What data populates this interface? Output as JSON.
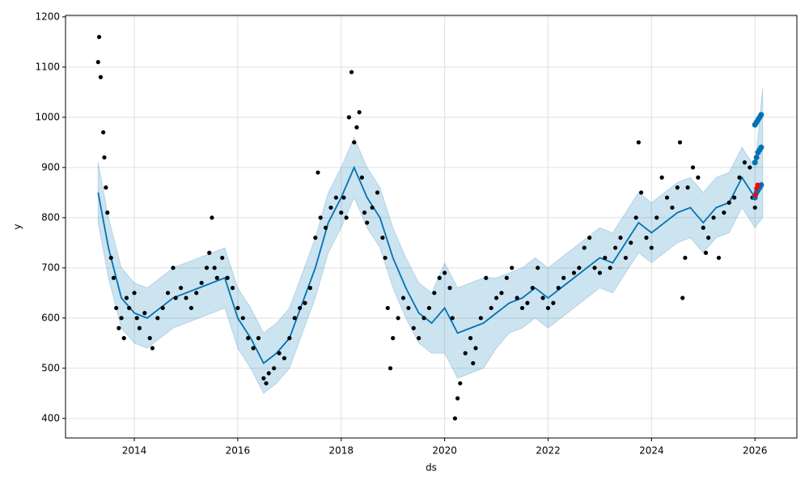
{
  "chart_data": {
    "type": "line",
    "xlabel": "ds",
    "ylabel": "y",
    "xlim": [
      2012.67,
      2026.81
    ],
    "ylim": [
      361,
      1203
    ],
    "xticks": [
      2014,
      2016,
      2018,
      2020,
      2022,
      2024,
      2026
    ],
    "yticks": [
      400,
      500,
      600,
      700,
      800,
      900,
      1000,
      1100,
      1200
    ],
    "grid": true,
    "series": [
      {
        "type": "band",
        "color": "#0072B2",
        "x": [
          2013.3,
          2013.5,
          2013.75,
          2014.0,
          2014.25,
          2014.5,
          2014.75,
          2015.0,
          2015.25,
          2015.5,
          2015.75,
          2016.0,
          2016.25,
          2016.5,
          2016.75,
          2017.0,
          2017.25,
          2017.5,
          2017.75,
          2018.0,
          2018.25,
          2018.5,
          2018.75,
          2019.0,
          2019.25,
          2019.5,
          2019.75,
          2020.0,
          2020.25,
          2020.5,
          2020.75,
          2021.0,
          2021.25,
          2021.5,
          2021.75,
          2022.0,
          2022.25,
          2022.5,
          2022.75,
          2023.0,
          2023.25,
          2023.5,
          2023.75,
          2024.0,
          2024.25,
          2024.5,
          2024.75,
          2025.0,
          2025.25,
          2025.5,
          2025.75,
          2026.0,
          2026.15
        ],
        "lower": [
          790,
          680,
          580,
          550,
          540,
          560,
          580,
          590,
          600,
          610,
          620,
          540,
          500,
          450,
          470,
          500,
          570,
          640,
          730,
          780,
          840,
          780,
          740,
          660,
          600,
          550,
          530,
          530,
          480,
          490,
          500,
          540,
          570,
          580,
          600,
          580,
          600,
          620,
          640,
          660,
          650,
          690,
          730,
          710,
          730,
          750,
          760,
          730,
          760,
          770,
          820,
          780,
          800
        ],
        "upper": [
          910,
          800,
          700,
          670,
          660,
          680,
          700,
          710,
          720,
          730,
          740,
          660,
          620,
          570,
          590,
          620,
          690,
          760,
          850,
          900,
          960,
          900,
          860,
          780,
          720,
          670,
          650,
          710,
          660,
          670,
          680,
          680,
          690,
          700,
          720,
          700,
          720,
          740,
          760,
          780,
          770,
          810,
          850,
          830,
          850,
          870,
          880,
          850,
          880,
          890,
          940,
          900,
          1060
        ]
      },
      {
        "type": "line",
        "color": "#0072B2",
        "x": [
          2013.3,
          2013.5,
          2013.75,
          2014.0,
          2014.25,
          2014.5,
          2014.75,
          2015.0,
          2015.25,
          2015.5,
          2015.75,
          2016.0,
          2016.25,
          2016.5,
          2016.75,
          2017.0,
          2017.25,
          2017.5,
          2017.75,
          2018.0,
          2018.25,
          2018.5,
          2018.75,
          2019.0,
          2019.25,
          2019.5,
          2019.75,
          2020.0,
          2020.25,
          2020.5,
          2020.75,
          2021.0,
          2021.25,
          2021.5,
          2021.75,
          2022.0,
          2022.25,
          2022.5,
          2022.75,
          2023.0,
          2023.25,
          2023.5,
          2023.75,
          2024.0,
          2024.25,
          2024.5,
          2024.75,
          2025.0,
          2025.25,
          2025.5,
          2025.75,
          2026.0,
          2026.15
        ],
        "values": [
          850,
          740,
          640,
          610,
          600,
          620,
          640,
          650,
          660,
          670,
          680,
          600,
          560,
          510,
          530,
          560,
          630,
          700,
          790,
          840,
          900,
          840,
          800,
          720,
          660,
          610,
          590,
          620,
          570,
          580,
          590,
          610,
          630,
          640,
          660,
          640,
          660,
          680,
          700,
          720,
          710,
          750,
          790,
          770,
          790,
          810,
          820,
          790,
          820,
          830,
          880,
          840,
          870
        ]
      },
      {
        "type": "scatter",
        "color": "#000000",
        "radius": 2.6,
        "x": [
          2013.3,
          2013.32,
          2013.35,
          2013.4,
          2013.42,
          2013.45,
          2013.48,
          2013.55,
          2013.6,
          2013.65,
          2013.7,
          2013.75,
          2013.8,
          2013.85,
          2013.9,
          2014.0,
          2014.05,
          2014.1,
          2014.2,
          2014.3,
          2014.35,
          2014.45,
          2014.55,
          2014.65,
          2014.75,
          2014.8,
          2014.9,
          2015.0,
          2015.1,
          2015.2,
          2015.3,
          2015.4,
          2015.45,
          2015.5,
          2015.55,
          2015.6,
          2015.7,
          2015.8,
          2015.9,
          2016.0,
          2016.1,
          2016.2,
          2016.3,
          2016.4,
          2016.5,
          2016.55,
          2016.6,
          2016.7,
          2016.8,
          2016.9,
          2017.0,
          2017.1,
          2017.2,
          2017.3,
          2017.4,
          2017.5,
          2017.55,
          2017.6,
          2017.7,
          2017.8,
          2017.9,
          2018.0,
          2018.05,
          2018.1,
          2018.15,
          2018.2,
          2018.25,
          2018.3,
          2018.35,
          2018.4,
          2018.45,
          2018.5,
          2018.6,
          2018.7,
          2018.8,
          2018.85,
          2018.9,
          2018.95,
          2019.0,
          2019.1,
          2019.2,
          2019.3,
          2019.4,
          2019.5,
          2019.6,
          2019.7,
          2019.8,
          2019.9,
          2020.0,
          2020.1,
          2020.15,
          2020.2,
          2020.25,
          2020.3,
          2020.4,
          2020.5,
          2020.55,
          2020.6,
          2020.7,
          2020.8,
          2020.9,
          2021.0,
          2021.1,
          2021.2,
          2021.3,
          2021.4,
          2021.5,
          2021.6,
          2021.7,
          2021.8,
          2021.9,
          2022.0,
          2022.1,
          2022.2,
          2022.3,
          2022.5,
          2022.6,
          2022.7,
          2022.8,
          2022.9,
          2023.0,
          2023.1,
          2023.2,
          2023.3,
          2023.4,
          2023.5,
          2023.6,
          2023.7,
          2023.75,
          2023.8,
          2023.9,
          2024.0,
          2024.1,
          2024.2,
          2024.3,
          2024.4,
          2024.5,
          2024.55,
          2024.6,
          2024.65,
          2024.7,
          2024.8,
          2024.9,
          2025.0,
          2025.05,
          2025.1,
          2025.2,
          2025.3,
          2025.4,
          2025.5,
          2025.6,
          2025.7,
          2025.8,
          2025.9,
          2025.95,
          2026.0
        ],
        "values": [
          1110,
          1160,
          1080,
          970,
          920,
          860,
          810,
          720,
          680,
          620,
          580,
          600,
          560,
          640,
          620,
          650,
          600,
          580,
          610,
          560,
          540,
          600,
          620,
          650,
          700,
          640,
          660,
          640,
          620,
          650,
          670,
          700,
          730,
          800,
          700,
          680,
          720,
          680,
          660,
          620,
          600,
          560,
          540,
          560,
          480,
          470,
          490,
          500,
          530,
          520,
          560,
          600,
          620,
          630,
          660,
          760,
          890,
          800,
          780,
          820,
          840,
          810,
          840,
          800,
          1000,
          1090,
          950,
          980,
          1010,
          880,
          810,
          790,
          820,
          850,
          760,
          720,
          620,
          500,
          560,
          600,
          640,
          620,
          580,
          560,
          600,
          620,
          650,
          680,
          690,
          660,
          600,
          400,
          440,
          470,
          530,
          560,
          510,
          540,
          600,
          680,
          620,
          640,
          650,
          680,
          700,
          640,
          620,
          630,
          660,
          700,
          640,
          620,
          630,
          660,
          680,
          690,
          700,
          740,
          760,
          700,
          690,
          720,
          700,
          740,
          760,
          720,
          750,
          800,
          950,
          850,
          760,
          740,
          800,
          880,
          840,
          820,
          860,
          950,
          640,
          720,
          860,
          900,
          880,
          780,
          730,
          760,
          800,
          720,
          810,
          830,
          840,
          880,
          910,
          900,
          840,
          820
        ]
      },
      {
        "type": "scatter",
        "color": "#0072B2",
        "radius": 3.5,
        "x": [
          2026.0,
          2026.0,
          2026.0,
          2026.03,
          2026.03,
          2026.03,
          2026.06,
          2026.06,
          2026.06,
          2026.09,
          2026.09,
          2026.09,
          2026.12,
          2026.12,
          2026.12
        ],
        "values": [
          840,
          910,
          985,
          850,
          920,
          990,
          855,
          930,
          995,
          860,
          935,
          1000,
          865,
          940,
          1005
        ]
      },
      {
        "type": "scatter",
        "color": "#ff0000",
        "radius": 3,
        "x": [
          2026.01,
          2026.03,
          2026.05
        ],
        "values": [
          845,
          858,
          865
        ]
      }
    ]
  }
}
